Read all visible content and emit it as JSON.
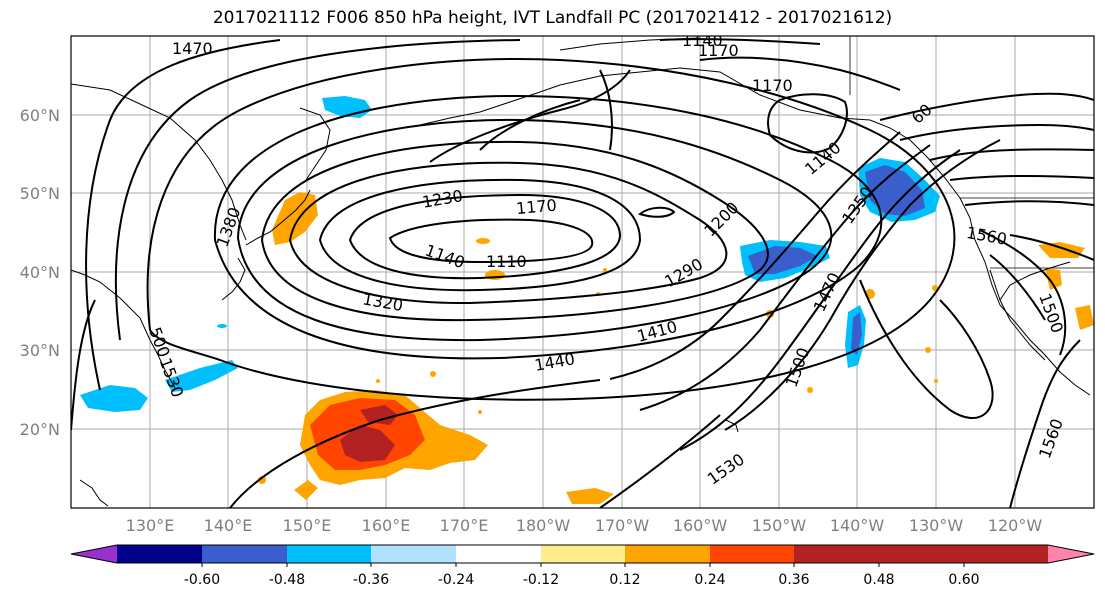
{
  "title": "2017021112 F006 850 hPa height, IVT Landfall PC (2017021412 - 2017021612)",
  "map": {
    "lat_labels": [
      "60°N",
      "50°N",
      "40°N",
      "30°N",
      "20°N"
    ],
    "lon_labels": [
      "130°E",
      "140°E",
      "150°E",
      "160°E",
      "170°E",
      "180°W",
      "170°W",
      "160°W",
      "150°W",
      "140°W",
      "130°W",
      "120°W"
    ],
    "axis_label_color": "#808080",
    "contour_labels": [
      "1470",
      "1140",
      "1170",
      "1170",
      "1380",
      "1230",
      "1170",
      "1140",
      "1110",
      "1200",
      "1290",
      "1350",
      "1140",
      "60",
      "1560",
      "1320",
      "1410",
      "1470",
      "1440",
      "1500",
      "1530",
      "500",
      "1530",
      "1530",
      "1560",
      "1500"
    ],
    "contour_color": "#000000"
  },
  "colorbar": {
    "colors": [
      "#9932cc",
      "#00008b",
      "#3a5fcd",
      "#00bfff",
      "#b0e2ff",
      "#ffffff",
      "#ffec8b",
      "#ffa500",
      "#ff4500",
      "#b22222",
      "#ff83aa"
    ],
    "tick_labels": [
      "-0.60",
      "-0.48",
      "-0.36",
      "-0.24",
      "-0.12",
      "0.12",
      "0.24",
      "0.36",
      "0.48",
      "0.60"
    ]
  }
}
